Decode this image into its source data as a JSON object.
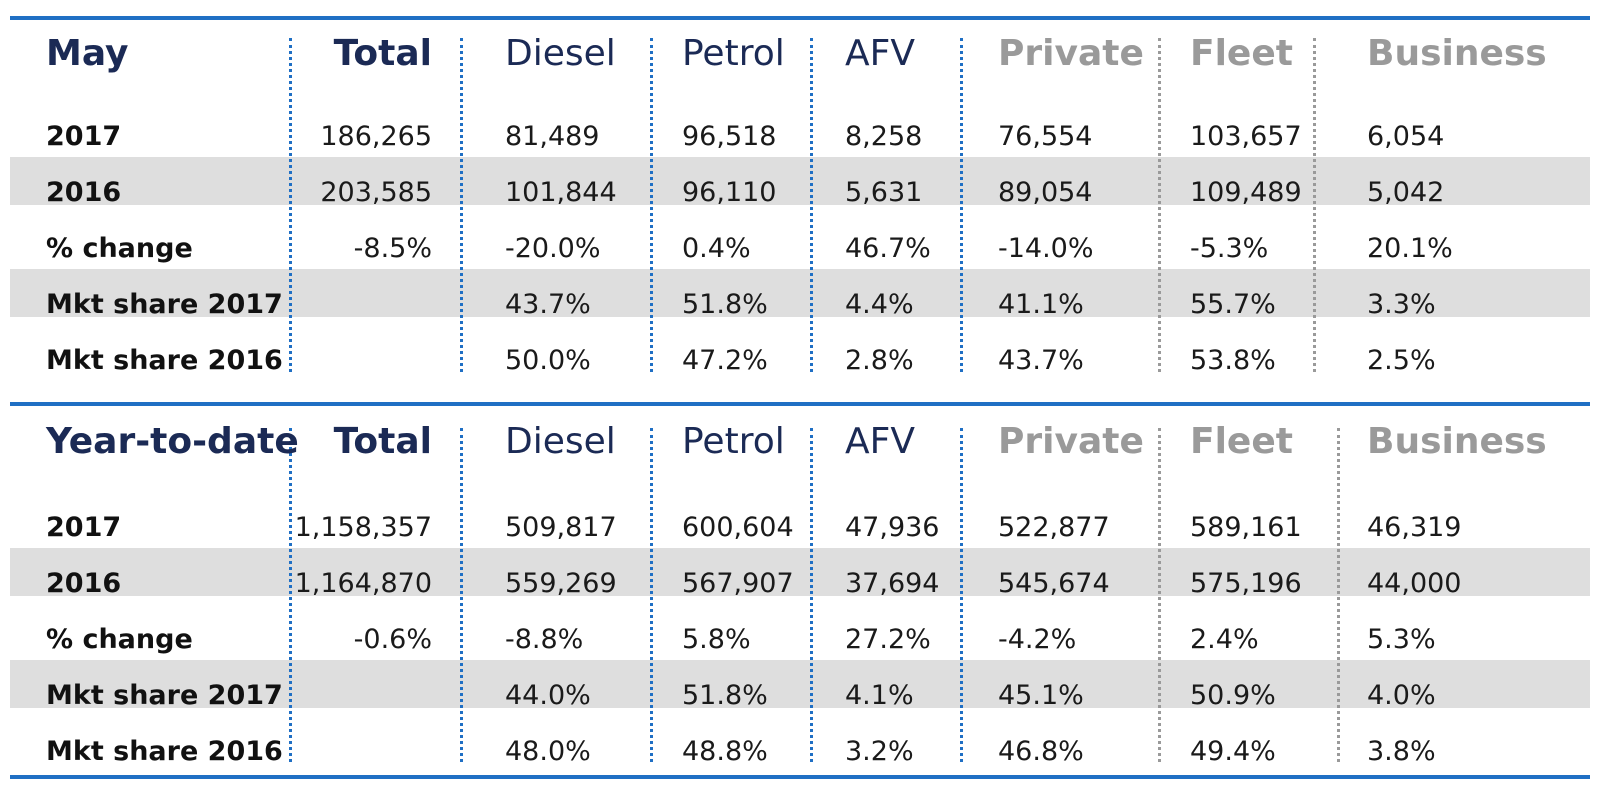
{
  "columns": [
    "Total",
    "Diesel",
    "Petrol",
    "AFV",
    "Private",
    "Fleet",
    "Business"
  ],
  "colors": {
    "accent": "#1f6fc4",
    "navy": "#1b2a55",
    "grey": "#9a9a9a",
    "stripe": "#dedede"
  },
  "sections": [
    {
      "title": "May",
      "rows": [
        {
          "label": "2017",
          "values": [
            "186,265",
            "81,489",
            "96,518",
            "8,258",
            "76,554",
            "103,657",
            "6,054"
          ]
        },
        {
          "label": "2016",
          "values": [
            "203,585",
            "101,844",
            "96,110",
            "5,631",
            "89,054",
            "109,489",
            "5,042"
          ]
        },
        {
          "label": "% change",
          "values": [
            "-8.5%",
            "-20.0%",
            "0.4%",
            "46.7%",
            "-14.0%",
            "-5.3%",
            "20.1%"
          ]
        },
        {
          "label": "Mkt share 2017",
          "values": [
            "",
            "43.7%",
            "51.8%",
            "4.4%",
            "41.1%",
            "55.7%",
            "3.3%"
          ]
        },
        {
          "label": "Mkt share 2016",
          "values": [
            "",
            "50.0%",
            "47.2%",
            "2.8%",
            "43.7%",
            "53.8%",
            "2.5%"
          ]
        }
      ]
    },
    {
      "title": "Year-to-date",
      "rows": [
        {
          "label": "2017",
          "values": [
            "1,158,357",
            "509,817",
            "600,604",
            "47,936",
            "522,877",
            "589,161",
            "46,319"
          ]
        },
        {
          "label": "2016",
          "values": [
            "1,164,870",
            "559,269",
            "567,907",
            "37,694",
            "545,674",
            "575,196",
            "44,000"
          ]
        },
        {
          "label": "% change",
          "values": [
            "-0.6%",
            "-8.8%",
            "5.8%",
            "27.2%",
            "-4.2%",
            "2.4%",
            "5.3%"
          ]
        },
        {
          "label": "Mkt share 2017",
          "values": [
            "",
            "44.0%",
            "51.8%",
            "4.1%",
            "45.1%",
            "50.9%",
            "4.0%"
          ]
        },
        {
          "label": "Mkt share 2016",
          "values": [
            "",
            "48.0%",
            "48.8%",
            "3.2%",
            "46.8%",
            "49.4%",
            "3.8%"
          ]
        }
      ]
    }
  ]
}
